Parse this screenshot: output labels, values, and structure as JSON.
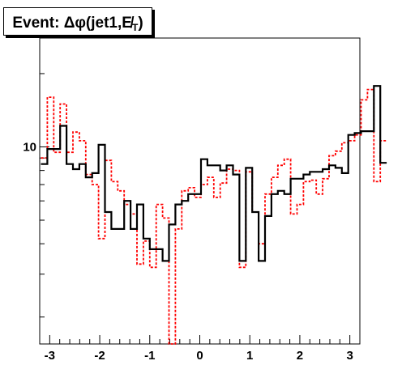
{
  "chart_data": {
    "type": "histogram",
    "title": "Event: Δφ(jet1,E̸",
    "title_sub": "T",
    "title_close": ")",
    "xlabel": "",
    "ylabel": "",
    "x_range": [
      -3.2,
      3.2
    ],
    "y_scale": "log",
    "y_range": [
      1.55,
      28
    ],
    "x_ticks": [
      "-3",
      "-2",
      "-1",
      "0",
      "1",
      "2",
      "3"
    ],
    "x_tick_values": [
      -3,
      -2,
      -1,
      0,
      1,
      2,
      3
    ],
    "y_ticks": [
      "10"
    ],
    "y_tick_values": [
      10
    ],
    "bin_width": 0.128,
    "series": [
      {
        "style": "solid",
        "color": "#000000",
        "values": [
          8.5,
          9.8,
          9.8,
          12.2,
          8.5,
          8.1,
          8.5,
          7.5,
          7.8,
          10.2,
          5.4,
          4.6,
          4.6,
          6.0,
          4.6,
          5.8,
          4.2,
          3.8,
          3.8,
          3.4,
          4.8,
          5.8,
          6.0,
          6.4,
          6.4,
          8.9,
          8.4,
          8.4,
          8.0,
          8.4,
          7.7,
          3.4,
          8.2,
          5.4,
          3.4,
          5.2,
          6.4,
          6.6,
          6.4,
          7.4,
          7.4,
          7.7,
          7.9,
          7.9,
          8.1,
          8.4,
          8.2,
          7.8,
          11.2,
          11.4,
          11.6,
          11.6,
          17.8,
          8.6
        ]
      },
      {
        "style": "dashed",
        "color": "#ff0000",
        "values": [
          9.0,
          16.0,
          9.5,
          15.0,
          9.5,
          11.5,
          10.6,
          7.7,
          7.0,
          4.2,
          8.8,
          7.2,
          6.6,
          5.8,
          5.3,
          3.3,
          4.1,
          3.2,
          5.8,
          5.1,
          1.5,
          4.6,
          6.6,
          6.8,
          6.2,
          7.0,
          7.5,
          6.2,
          7.1,
          8.1,
          8.0,
          3.2,
          7.9,
          5.4,
          4.0,
          6.4,
          7.5,
          8.4,
          8.9,
          5.3,
          5.8,
          7.2,
          7.3,
          6.4,
          7.4,
          9.2,
          9.6,
          10.4,
          10.6,
          11.2,
          15.6,
          17.2,
          7.2,
          10.6
        ]
      }
    ]
  }
}
